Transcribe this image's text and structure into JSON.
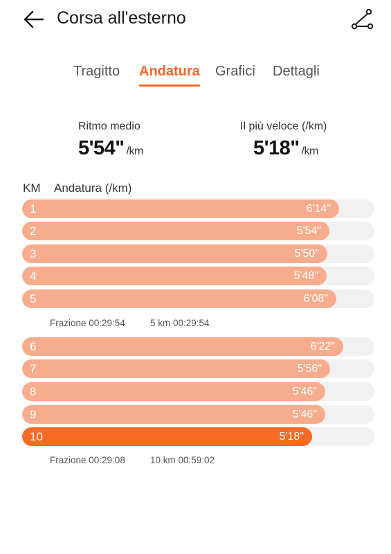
{
  "header": {
    "title": "Corsa all'esterno"
  },
  "tabs": [
    {
      "label": "Tragitto",
      "active": false
    },
    {
      "label": "Andatura",
      "active": true
    },
    {
      "label": "Grafici",
      "active": false
    },
    {
      "label": "Dettagli",
      "active": false
    }
  ],
  "stats": {
    "avg_label": "Ritmo medio",
    "avg_value": "5'54\"",
    "avg_unit": "/km",
    "fast_label": "Il più veloce (/km)",
    "fast_value": "5'18\"",
    "fast_unit": "/km"
  },
  "table": {
    "km_header": "KM",
    "pace_header": "Andatura (/km)"
  },
  "chart_data": {
    "type": "bar",
    "orientation": "horizontal",
    "categories": [
      "1",
      "2",
      "3",
      "4",
      "5",
      "6",
      "7",
      "8",
      "9",
      "10"
    ],
    "labels": [
      "6'14\"",
      "5'54\"",
      "5'50\"",
      "5'48\"",
      "6'08\"",
      "6'22\"",
      "5'56\"",
      "5'46\"",
      "5'46\"",
      "5'18\""
    ],
    "values_seconds_per_km": [
      374,
      354,
      350,
      348,
      368,
      382,
      356,
      346,
      346,
      318
    ],
    "highlight_index": 9,
    "colors": {
      "bar": "#f7ad8d",
      "fastest": "#f76b25",
      "track": "#f1f1f1"
    }
  },
  "splits": [
    {
      "frazione": "Frazione 00:29:54",
      "cumulative": "5 km 00:29:54"
    },
    {
      "frazione": "Frazione 00:29:08",
      "cumulative": "10 km 00:59:02"
    }
  ],
  "colors": {
    "accent": "#f2662a"
  }
}
